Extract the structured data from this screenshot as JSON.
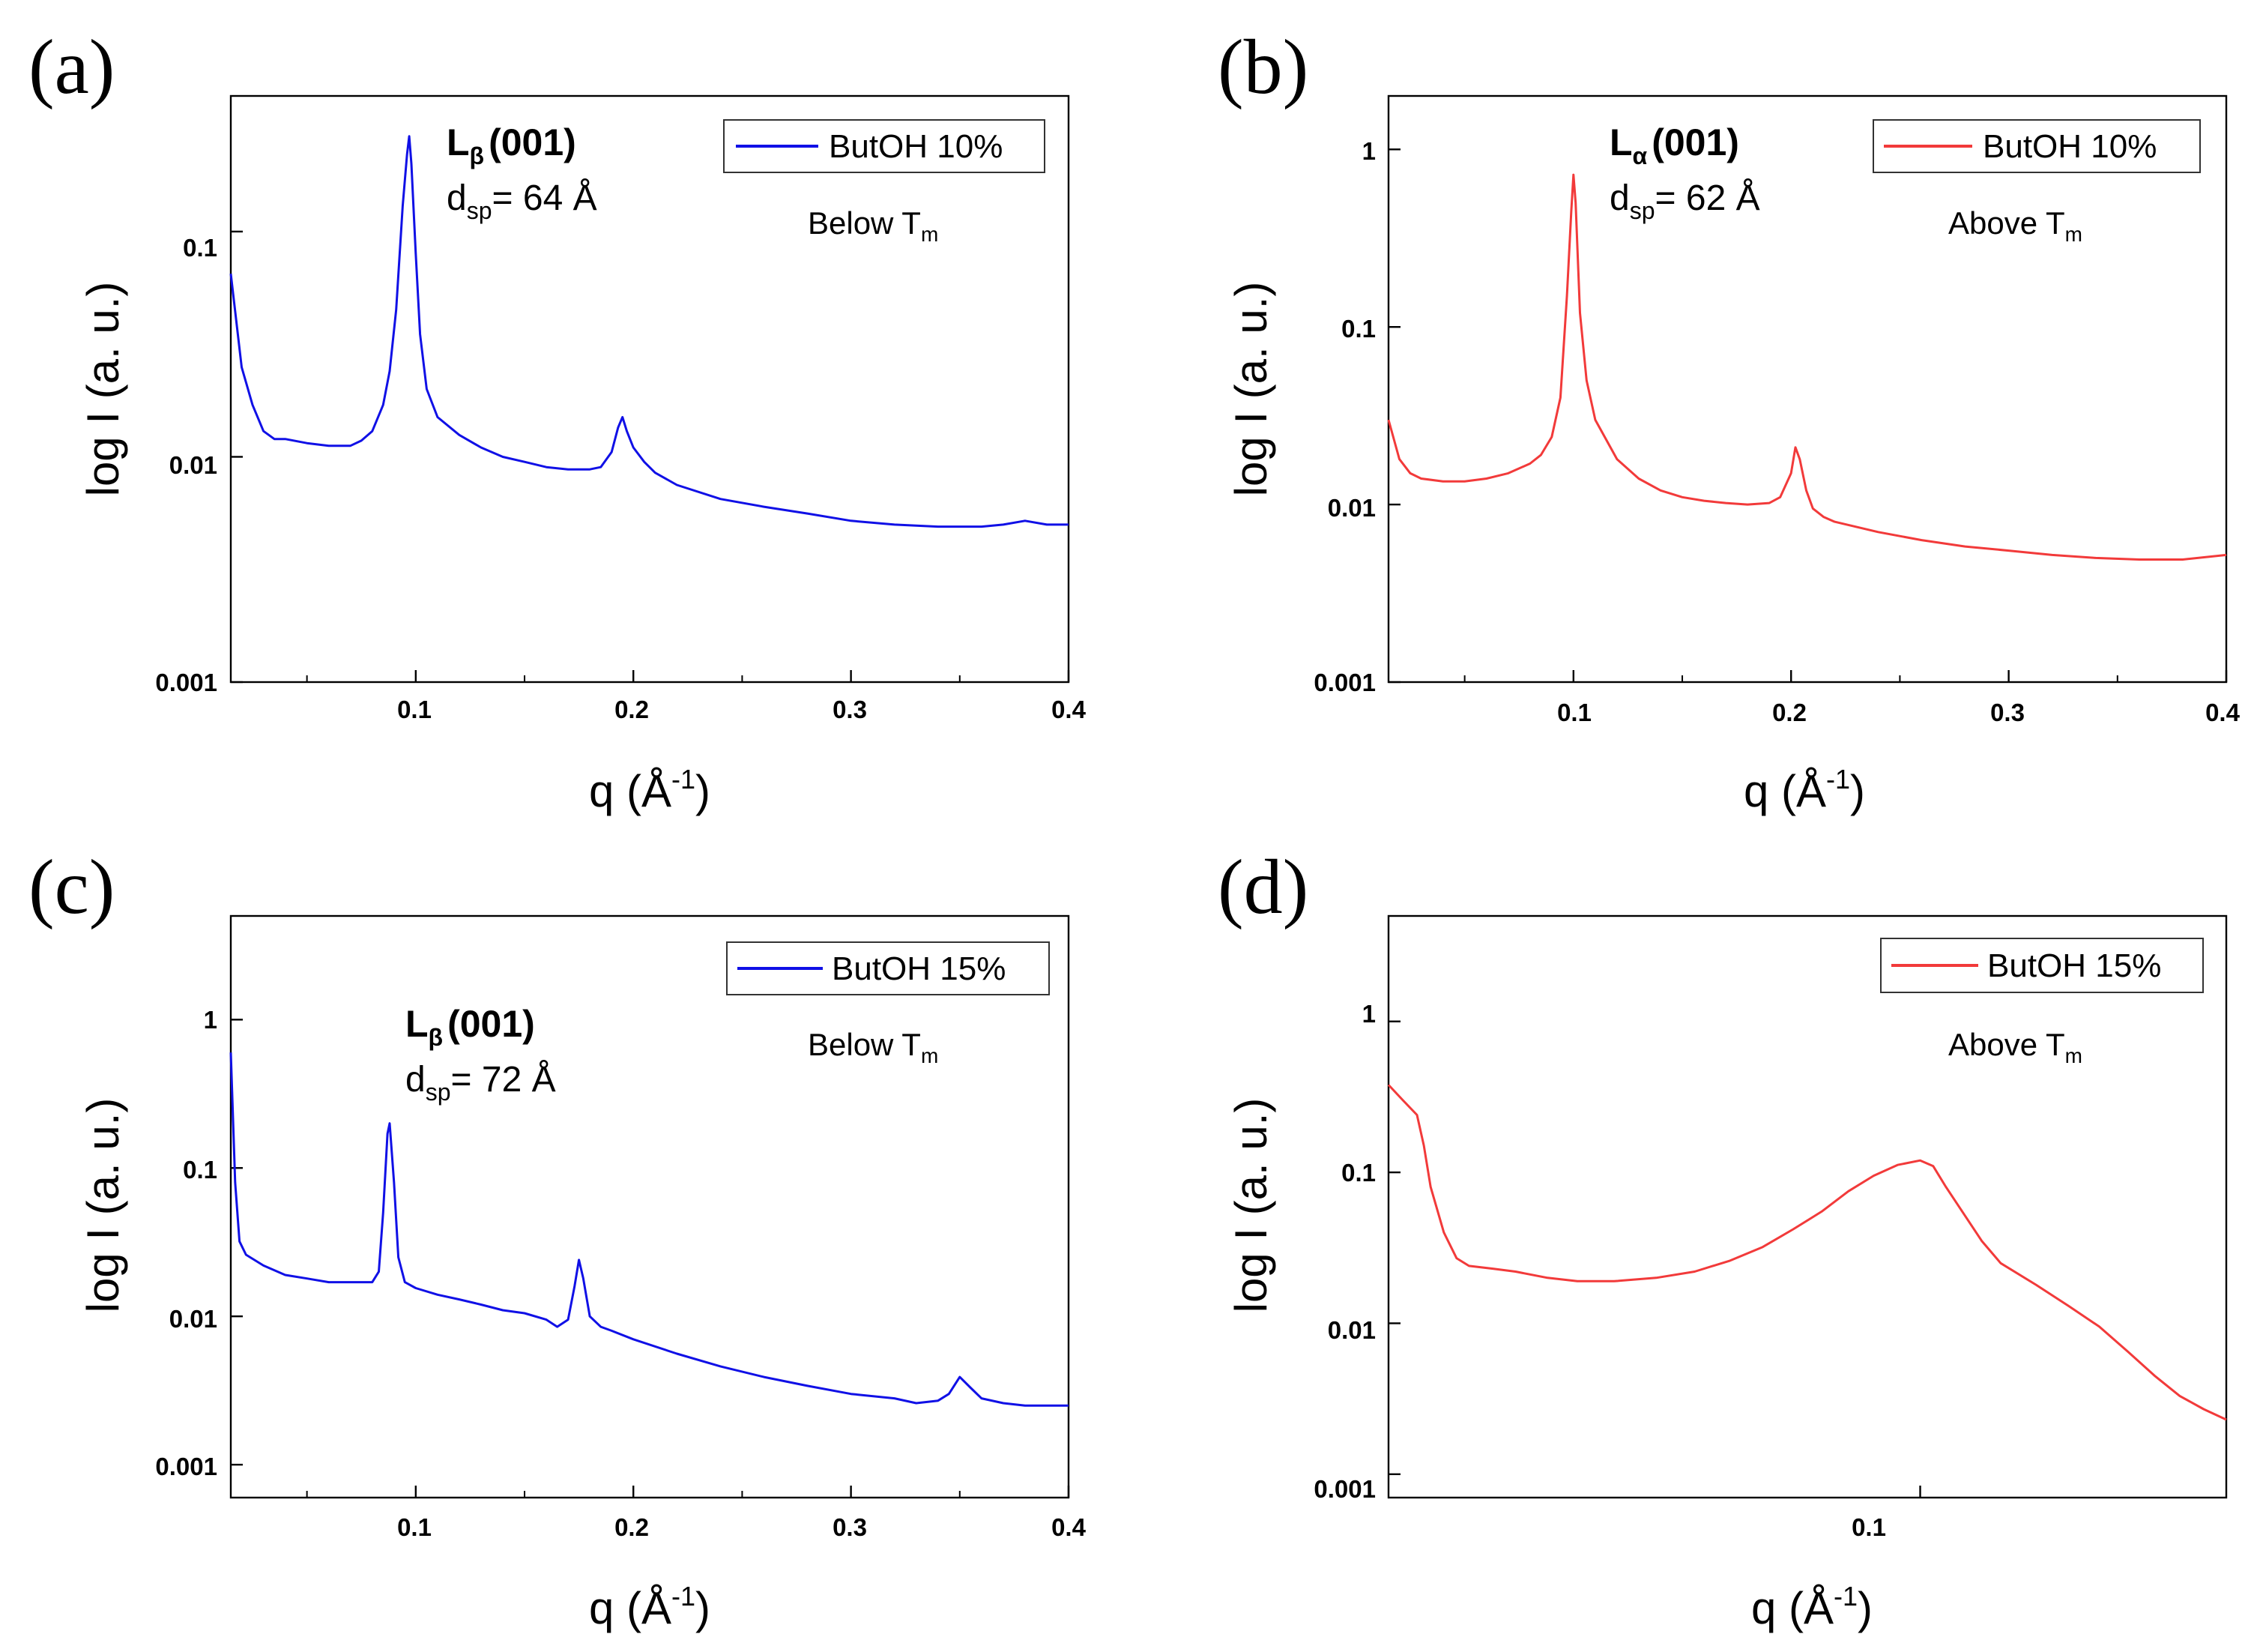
{
  "panels": [
    {
      "letter": "(a)",
      "xlabel_main": "q (Å",
      "xlabel_sup": "-1",
      "xlabel_close": ")",
      "ylabel": "log I (a. u.)",
      "x_tick_labels": [
        "0.1",
        "0.2",
        "0.3",
        "0.4"
      ],
      "y_tick_labels": [
        "0.001",
        "0.01",
        "0.1"
      ],
      "legend_label": "ButOH 10%",
      "phase_symbol": "L",
      "phase_sub": "β",
      "phase_index": "(001)",
      "dsp_label": "d",
      "dsp_sub": "sp",
      "dsp_value": "= 64 Å",
      "temp_label": "Below T",
      "temp_sub": "m"
    },
    {
      "letter": "(b)",
      "xlabel_main": "q (Å",
      "xlabel_sup": "-1",
      "xlabel_close": ")",
      "ylabel": "log I (a. u.)",
      "x_tick_labels": [
        "0.1",
        "0.2",
        "0.3",
        "0.4"
      ],
      "y_tick_labels": [
        "0.001",
        "0.01",
        "0.1",
        "1"
      ],
      "legend_label": "ButOH 10%",
      "phase_symbol": "L",
      "phase_sub": "α",
      "phase_index": "(001)",
      "dsp_label": "d",
      "dsp_sub": "sp",
      "dsp_value": "= 62 Å",
      "temp_label": "Above T",
      "temp_sub": "m"
    },
    {
      "letter": "(c)",
      "xlabel_main": "q (Å",
      "xlabel_sup": "-1",
      "xlabel_close": ")",
      "ylabel": "log I (a. u.)",
      "x_tick_labels": [
        "0.1",
        "0.2",
        "0.3",
        "0.4"
      ],
      "y_tick_labels": [
        "0.001",
        "0.01",
        "0.1",
        "1"
      ],
      "legend_label": "ButOH 15%",
      "phase_symbol": "L",
      "phase_sub": "β",
      "phase_index": "(001)",
      "dsp_label": "d",
      "dsp_sub": "sp",
      "dsp_value": "= 72 Å",
      "temp_label": "Below T",
      "temp_sub": "m"
    },
    {
      "letter": "(d)",
      "xlabel_main": "q (Å",
      "xlabel_sup": "-1",
      "xlabel_close": ")",
      "ylabel": "log I (a. u.)",
      "x_tick_labels": [
        "0.1"
      ],
      "y_tick_labels": [
        "0.001",
        "0.01",
        "0.1",
        "1"
      ],
      "legend_label": "ButOH 15%",
      "temp_label": "Above T",
      "temp_sub": "m"
    }
  ],
  "chart_data": [
    {
      "type": "line",
      "panel": "(a)",
      "xscale": "linear",
      "yscale": "log",
      "xlim": [
        0.015,
        0.4
      ],
      "ylim": [
        0.001,
        0.4
      ],
      "xticks": [
        0.1,
        0.2,
        0.3,
        0.4
      ],
      "yticks": [
        0.001,
        0.01,
        0.1
      ],
      "color": "#1010e6",
      "legend_position": "top-right",
      "series": [
        {
          "name": "ButOH 10%",
          "x": [
            0.015,
            0.02,
            0.025,
            0.03,
            0.035,
            0.04,
            0.05,
            0.06,
            0.07,
            0.075,
            0.08,
            0.085,
            0.088,
            0.091,
            0.094,
            0.096,
            0.097,
            0.098,
            0.1,
            0.102,
            0.105,
            0.11,
            0.12,
            0.13,
            0.14,
            0.15,
            0.16,
            0.17,
            0.18,
            0.185,
            0.19,
            0.193,
            0.195,
            0.197,
            0.2,
            0.205,
            0.21,
            0.22,
            0.24,
            0.26,
            0.28,
            0.3,
            0.32,
            0.34,
            0.36,
            0.37,
            0.38,
            0.39,
            0.4
          ],
          "y": [
            0.065,
            0.025,
            0.017,
            0.013,
            0.012,
            0.012,
            0.0115,
            0.0112,
            0.0112,
            0.0118,
            0.013,
            0.017,
            0.024,
            0.045,
            0.13,
            0.22,
            0.265,
            0.2,
            0.08,
            0.035,
            0.02,
            0.015,
            0.0125,
            0.011,
            0.01,
            0.0095,
            0.009,
            0.0088,
            0.0088,
            0.009,
            0.0105,
            0.0135,
            0.015,
            0.013,
            0.011,
            0.0095,
            0.0085,
            0.0075,
            0.0065,
            0.006,
            0.0056,
            0.0052,
            0.005,
            0.0049,
            0.0049,
            0.005,
            0.0052,
            0.005,
            0.005
          ]
        }
      ]
    },
    {
      "type": "line",
      "panel": "(b)",
      "xscale": "linear",
      "yscale": "log",
      "xlim": [
        0.015,
        0.4
      ],
      "ylim": [
        0.001,
        2
      ],
      "xticks": [
        0.1,
        0.2,
        0.3,
        0.4
      ],
      "yticks": [
        0.001,
        0.01,
        0.1,
        1
      ],
      "color": "#f23a3a",
      "legend_position": "top-right",
      "series": [
        {
          "name": "ButOH 10%",
          "x": [
            0.015,
            0.02,
            0.025,
            0.03,
            0.04,
            0.05,
            0.06,
            0.07,
            0.08,
            0.085,
            0.09,
            0.094,
            0.097,
            0.099,
            0.1,
            0.101,
            0.103,
            0.106,
            0.11,
            0.12,
            0.13,
            0.14,
            0.15,
            0.16,
            0.17,
            0.18,
            0.19,
            0.195,
            0.2,
            0.202,
            0.204,
            0.207,
            0.21,
            0.215,
            0.22,
            0.24,
            0.26,
            0.28,
            0.3,
            0.32,
            0.34,
            0.36,
            0.38,
            0.4
          ],
          "y": [
            0.03,
            0.018,
            0.015,
            0.014,
            0.0135,
            0.0135,
            0.014,
            0.015,
            0.017,
            0.019,
            0.024,
            0.04,
            0.15,
            0.45,
            0.72,
            0.5,
            0.12,
            0.05,
            0.03,
            0.018,
            0.014,
            0.012,
            0.011,
            0.0105,
            0.0102,
            0.01,
            0.0102,
            0.011,
            0.015,
            0.021,
            0.018,
            0.012,
            0.0095,
            0.0085,
            0.008,
            0.007,
            0.0063,
            0.0058,
            0.0055,
            0.0052,
            0.005,
            0.0049,
            0.0049,
            0.0052
          ]
        }
      ]
    },
    {
      "type": "line",
      "panel": "(c)",
      "xscale": "linear",
      "yscale": "log",
      "xlim": [
        0.015,
        0.4
      ],
      "ylim": [
        0.0006,
        5
      ],
      "xticks": [
        0.1,
        0.2,
        0.3,
        0.4
      ],
      "yticks": [
        0.001,
        0.01,
        0.1,
        1
      ],
      "color": "#1010e6",
      "legend_position": "top-right",
      "series": [
        {
          "name": "ButOH 15%",
          "x": [
            0.015,
            0.017,
            0.019,
            0.022,
            0.03,
            0.04,
            0.05,
            0.06,
            0.07,
            0.08,
            0.083,
            0.085,
            0.087,
            0.088,
            0.09,
            0.092,
            0.095,
            0.1,
            0.11,
            0.12,
            0.13,
            0.14,
            0.15,
            0.16,
            0.165,
            0.17,
            0.173,
            0.175,
            0.177,
            0.18,
            0.185,
            0.19,
            0.2,
            0.22,
            0.24,
            0.26,
            0.28,
            0.3,
            0.32,
            0.33,
            0.34,
            0.345,
            0.35,
            0.355,
            0.36,
            0.37,
            0.38,
            0.39,
            0.4
          ],
          "y": [
            0.6,
            0.08,
            0.032,
            0.026,
            0.022,
            0.019,
            0.018,
            0.017,
            0.017,
            0.017,
            0.02,
            0.05,
            0.17,
            0.2,
            0.08,
            0.025,
            0.017,
            0.0155,
            0.014,
            0.013,
            0.012,
            0.011,
            0.0105,
            0.0095,
            0.0085,
            0.0095,
            0.016,
            0.024,
            0.018,
            0.01,
            0.0085,
            0.008,
            0.007,
            0.0056,
            0.0046,
            0.0039,
            0.0034,
            0.003,
            0.0028,
            0.0026,
            0.0027,
            0.003,
            0.0039,
            0.0033,
            0.0028,
            0.0026,
            0.0025,
            0.0025,
            0.0025
          ]
        }
      ]
    },
    {
      "type": "line",
      "panel": "(d)",
      "xscale": "log",
      "yscale": "log",
      "xlim": [
        0.03,
        0.2
      ],
      "ylim": [
        0.0007,
        5
      ],
      "xticks": [
        0.1
      ],
      "yticks": [
        0.001,
        0.01,
        0.1,
        1
      ],
      "color": "#f23a3a",
      "legend_position": "top-right",
      "series": [
        {
          "name": "ButOH 15%",
          "x": [
            0.03,
            0.031,
            0.032,
            0.0325,
            0.033,
            0.034,
            0.035,
            0.036,
            0.038,
            0.04,
            0.043,
            0.046,
            0.05,
            0.055,
            0.06,
            0.065,
            0.07,
            0.075,
            0.08,
            0.085,
            0.09,
            0.095,
            0.1,
            0.103,
            0.106,
            0.11,
            0.115,
            0.12,
            0.13,
            0.14,
            0.15,
            0.16,
            0.17,
            0.18,
            0.19,
            0.2
          ],
          "y": [
            0.38,
            0.3,
            0.24,
            0.15,
            0.08,
            0.04,
            0.027,
            0.024,
            0.023,
            0.022,
            0.02,
            0.019,
            0.019,
            0.02,
            0.022,
            0.026,
            0.032,
            0.042,
            0.055,
            0.075,
            0.095,
            0.112,
            0.12,
            0.11,
            0.08,
            0.055,
            0.035,
            0.025,
            0.018,
            0.013,
            0.0095,
            0.0065,
            0.0045,
            0.0033,
            0.0027,
            0.0023
          ]
        }
      ]
    }
  ]
}
